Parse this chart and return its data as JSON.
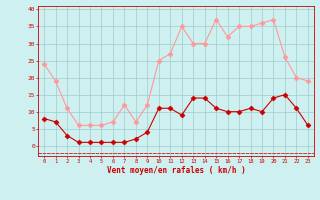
{
  "x": [
    0,
    1,
    2,
    3,
    4,
    5,
    6,
    7,
    8,
    9,
    10,
    11,
    12,
    13,
    14,
    15,
    16,
    17,
    18,
    19,
    20,
    21,
    22,
    23
  ],
  "vent_moyen": [
    8,
    7,
    3,
    1,
    1,
    1,
    1,
    1,
    2,
    4,
    11,
    11,
    9,
    14,
    14,
    11,
    10,
    10,
    11,
    10,
    14,
    15,
    11,
    6
  ],
  "rafales": [
    24,
    19,
    11,
    6,
    6,
    6,
    7,
    12,
    7,
    12,
    25,
    27,
    35,
    30,
    30,
    37,
    32,
    35,
    35,
    36,
    37,
    26,
    20,
    19
  ],
  "xlabel": "Vent moyen/en rafales ( km/h )",
  "bg_color": "#cff0f0",
  "grid_color": "#a0cccc",
  "line_color_moyen": "#cc0000",
  "line_color_rafales": "#ff9999",
  "ylim": [
    -3,
    41
  ],
  "yticks": [
    0,
    5,
    10,
    15,
    20,
    25,
    30,
    35,
    40
  ]
}
